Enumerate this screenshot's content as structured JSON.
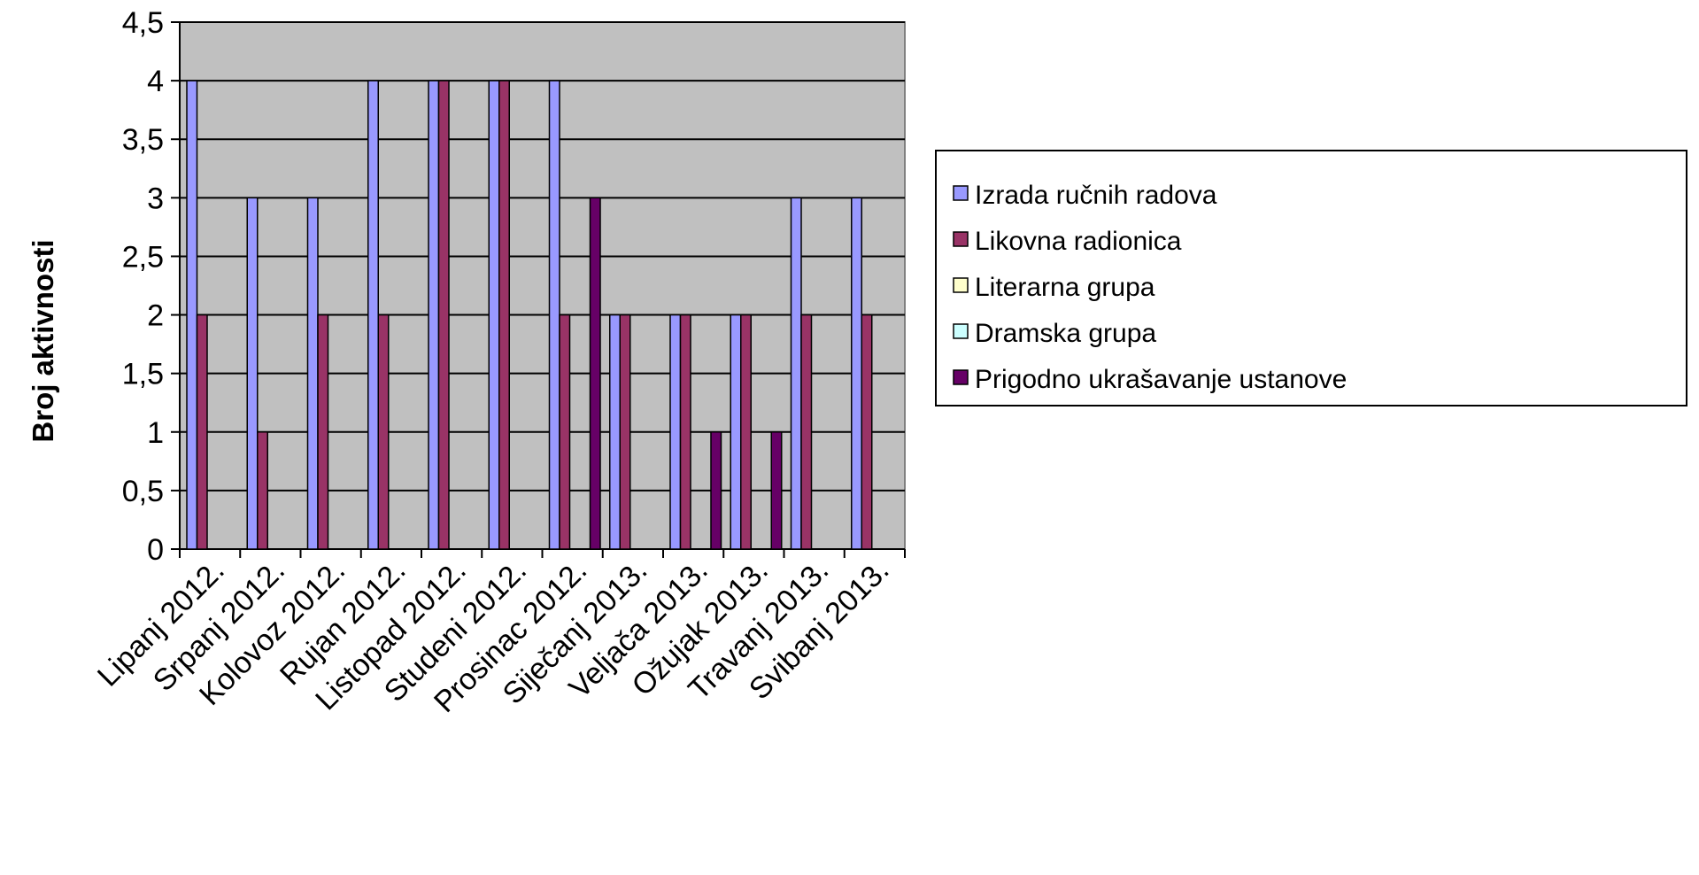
{
  "chart_data": {
    "type": "bar",
    "title": "",
    "xlabel": "",
    "ylabel": "Broj aktivnosti",
    "ylim": [
      0,
      4.5
    ],
    "yticks": [
      "0",
      "0,5",
      "1",
      "1,5",
      "2",
      "2,5",
      "3",
      "3,5",
      "4",
      "4,5"
    ],
    "grid": true,
    "legend_position": "right",
    "categories": [
      "Lipanj 2012.",
      "Srpanj 2012.",
      "Kolovoz 2012.",
      "Rujan 2012.",
      "Listopad 2012.",
      "Studeni 2012.",
      "Prosinac 2012.",
      "Siječanj 2013.",
      "Veljača 2013.",
      "Ožujak 2013.",
      "Travanj 2013.",
      "Svibanj 2013."
    ],
    "series": [
      {
        "name": "Izrada ručnih radova",
        "color": "#9999ff",
        "values": [
          4,
          3,
          3,
          4,
          4,
          4,
          4,
          2,
          2,
          2,
          3,
          3
        ]
      },
      {
        "name": "Likovna radionica",
        "color": "#993366",
        "values": [
          2,
          1,
          2,
          2,
          4,
          4,
          2,
          2,
          2,
          2,
          2,
          2
        ]
      },
      {
        "name": "Literarna grupa",
        "color": "#ffffcc",
        "values": [
          0,
          0,
          0,
          0,
          0,
          0,
          0,
          0,
          0,
          0,
          0,
          0
        ]
      },
      {
        "name": "Dramska grupa",
        "color": "#ccffff",
        "values": [
          0,
          0,
          0,
          0,
          0,
          0,
          0,
          0,
          0,
          0,
          0,
          0
        ]
      },
      {
        "name": "Prigodno ukrašavanje ustanove",
        "color": "#660066",
        "values": [
          0,
          0,
          0,
          0,
          0,
          0,
          3,
          0,
          1,
          1,
          0,
          0
        ]
      }
    ],
    "plot_background": "#c0c0c0"
  }
}
